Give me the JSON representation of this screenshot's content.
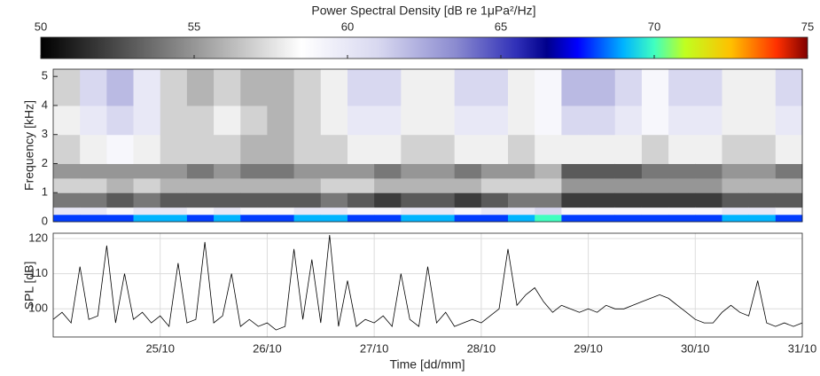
{
  "chart_data": [
    {
      "type": "heatmap",
      "colorbar_label": "Power Spectral Density [dB re 1μPa²/Hz]",
      "ylabel": "Frequency [kHz]",
      "ylim": [
        0,
        5.25
      ],
      "yticks": [
        0,
        1,
        2,
        3,
        4,
        5
      ],
      "clim": [
        50,
        75
      ],
      "cticks": [
        50,
        55,
        60,
        65,
        70,
        75
      ],
      "colormap": [
        {
          "value": 50,
          "color": "#000000"
        },
        {
          "value": 58.5,
          "color": "#ffffff"
        },
        {
          "value": 61,
          "color": "#d8d8f0"
        },
        {
          "value": 63.5,
          "color": "#8c8cd0"
        },
        {
          "value": 65.5,
          "color": "#3030b8"
        },
        {
          "value": 66.5,
          "color": "#00008c"
        },
        {
          "value": 67.5,
          "color": "#0000ff"
        },
        {
          "value": 69,
          "color": "#00b4ff"
        },
        {
          "value": 70,
          "color": "#40ffc0"
        },
        {
          "value": 71,
          "color": "#c0ff20"
        },
        {
          "value": 72.5,
          "color": "#ffc000"
        },
        {
          "value": 74,
          "color": "#ff3000"
        },
        {
          "value": 75,
          "color": "#800000"
        }
      ],
      "x": [
        24,
        24.25,
        24.5,
        24.75,
        25,
        25.25,
        25.5,
        25.75,
        26,
        26.25,
        26.5,
        26.75,
        27,
        27.25,
        27.5,
        27.75,
        28,
        28.25,
        28.5,
        28.75,
        29,
        29.25,
        29.5,
        29.75,
        30,
        30.25,
        30.5,
        30.75,
        31
      ],
      "y": [
        0,
        0.25,
        0.5,
        1,
        1.5,
        2,
        3,
        4,
        5.25
      ],
      "z": [
        [
          68,
          60,
          54,
          57,
          55,
          57,
          58,
          57
        ],
        [
          68,
          60,
          54,
          57,
          55,
          58,
          60,
          61
        ],
        [
          68,
          59,
          53,
          56,
          55,
          59,
          61,
          62
        ],
        [
          69,
          60,
          54,
          57,
          55,
          58,
          60,
          60
        ],
        [
          69,
          60,
          53,
          56,
          55,
          57,
          57,
          57
        ],
        [
          68,
          59,
          53,
          56,
          54,
          57,
          57,
          56
        ],
        [
          69,
          60,
          53,
          56,
          55,
          57,
          58,
          57
        ],
        [
          68,
          59,
          53,
          56,
          54,
          56,
          57,
          56
        ],
        [
          68,
          59,
          53,
          56,
          54,
          56,
          56,
          56
        ],
        [
          69,
          60,
          53,
          56,
          55,
          57,
          57,
          57
        ],
        [
          69,
          60,
          54,
          57,
          55,
          57,
          58,
          58
        ],
        [
          68,
          59,
          53,
          57,
          55,
          58,
          60,
          61
        ],
        [
          68,
          59,
          52,
          56,
          54,
          58,
          60,
          61
        ],
        [
          69,
          60,
          53,
          56,
          55,
          57,
          58,
          58
        ],
        [
          69,
          60,
          53,
          56,
          55,
          57,
          58,
          58
        ],
        [
          68,
          59,
          52,
          56,
          54,
          58,
          60,
          61
        ],
        [
          68,
          60,
          53,
          57,
          55,
          58,
          60,
          61
        ],
        [
          69,
          60,
          54,
          57,
          55,
          57,
          58,
          58
        ],
        [
          70,
          61,
          54,
          57,
          56,
          58,
          59,
          59
        ],
        [
          68,
          59,
          52,
          55,
          53,
          58,
          61,
          62
        ],
        [
          68,
          59,
          52,
          55,
          53,
          58,
          61,
          62
        ],
        [
          68,
          59,
          52,
          55,
          53,
          58,
          60,
          61
        ],
        [
          68,
          59,
          52,
          55,
          54,
          57,
          59,
          59
        ],
        [
          68,
          59,
          52,
          55,
          54,
          58,
          60,
          61
        ],
        [
          68,
          59,
          52,
          55,
          54,
          58,
          60,
          61
        ],
        [
          69,
          60,
          53,
          56,
          55,
          57,
          58,
          58
        ],
        [
          69,
          60,
          53,
          56,
          55,
          57,
          58,
          58
        ],
        [
          68,
          59,
          53,
          56,
          54,
          58,
          60,
          61
        ]
      ]
    },
    {
      "type": "line",
      "ylabel": "SPL [dB]",
      "xlabel": "Time [dd/mm]",
      "color": "#000000",
      "xlim": [
        24,
        31
      ],
      "ylim": [
        92,
        121.5
      ],
      "yticks": [
        100,
        110,
        120
      ],
      "xticks": [
        {
          "value": 25,
          "label": "25/10"
        },
        {
          "value": 26,
          "label": "26/10"
        },
        {
          "value": 27,
          "label": "27/10"
        },
        {
          "value": 28,
          "label": "28/10"
        },
        {
          "value": 29,
          "label": "29/10"
        },
        {
          "value": 30,
          "label": "30/10"
        },
        {
          "value": 31,
          "label": "31/10"
        }
      ],
      "grid": true,
      "x": [
        24,
        24.083,
        24.167,
        24.25,
        24.333,
        24.417,
        24.5,
        24.583,
        24.667,
        24.75,
        24.833,
        24.917,
        25,
        25.083,
        25.167,
        25.25,
        25.333,
        25.417,
        25.5,
        25.583,
        25.667,
        25.75,
        25.833,
        25.917,
        26,
        26.083,
        26.167,
        26.25,
        26.333,
        26.417,
        26.5,
        26.583,
        26.667,
        26.75,
        26.833,
        26.917,
        27,
        27.083,
        27.167,
        27.25,
        27.333,
        27.417,
        27.5,
        27.583,
        27.667,
        27.75,
        27.833,
        27.917,
        28,
        28.083,
        28.167,
        28.25,
        28.333,
        28.417,
        28.5,
        28.583,
        28.667,
        28.75,
        28.833,
        28.917,
        29,
        29.083,
        29.167,
        29.25,
        29.333,
        29.417,
        29.5,
        29.583,
        29.667,
        29.75,
        29.833,
        29.917,
        30,
        30.083,
        30.167,
        30.25,
        30.333,
        30.417,
        30.5,
        30.583,
        30.667,
        30.75,
        30.833,
        30.917,
        31
      ],
      "values": [
        97,
        99,
        96,
        112,
        97,
        98,
        118,
        96,
        110,
        97,
        99,
        96,
        98,
        95,
        113,
        96,
        97,
        119,
        96,
        98,
        110,
        95,
        97,
        95,
        96,
        94,
        95,
        117,
        97,
        114,
        96,
        121,
        95,
        108,
        95,
        97,
        96,
        98,
        95,
        110,
        97,
        95,
        112,
        96,
        99,
        95,
        96,
        97,
        96,
        98,
        100,
        117,
        101,
        104,
        106,
        102,
        99,
        101,
        100,
        99,
        100,
        99,
        101,
        100,
        100,
        101,
        102,
        103,
        104,
        103,
        101,
        99,
        97,
        96,
        96,
        99,
        101,
        99,
        98,
        108,
        96,
        95,
        96,
        95,
        96
      ]
    }
  ]
}
